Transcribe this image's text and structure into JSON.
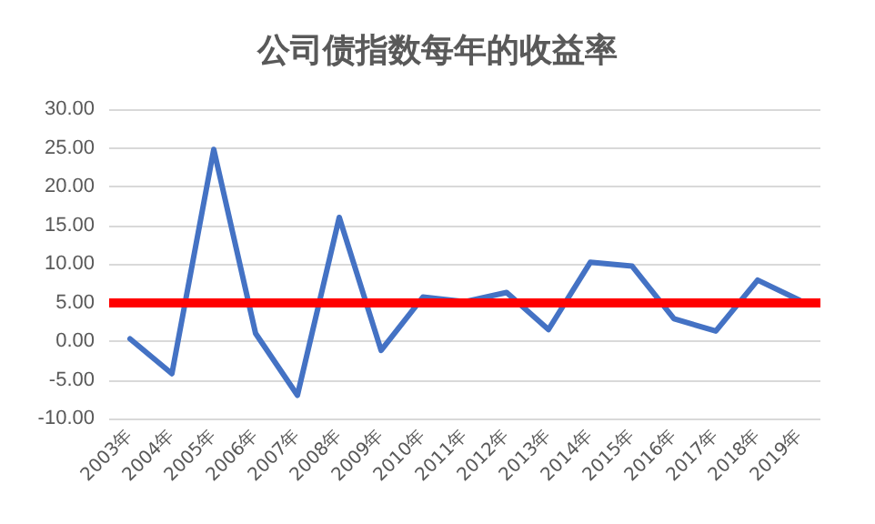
{
  "chart_data": {
    "type": "line",
    "title": "公司债指数每年的收益率",
    "categories": [
      "2003年",
      "2004年",
      "2005年",
      "2006年",
      "2007年",
      "2008年",
      "2009年",
      "2010年",
      "2011年",
      "2012年",
      "2013年",
      "2014年",
      "2015年",
      "2016年",
      "2017年",
      "2018年",
      "2019年"
    ],
    "series": [
      {
        "color": "#4472c4",
        "values": [
          0.3,
          -4.2,
          24.8,
          1.0,
          -7.0,
          16.0,
          -1.2,
          5.7,
          5.1,
          6.3,
          1.5,
          10.2,
          9.7,
          2.9,
          1.3,
          7.9,
          5.3
        ]
      }
    ],
    "ylim": [
      -10,
      30
    ],
    "yticks": [
      {
        "value": -10,
        "label": "-10.00"
      },
      {
        "value": -5,
        "label": "-5.00"
      },
      {
        "value": 0,
        "label": "0.00"
      },
      {
        "value": 5,
        "label": "5.00"
      },
      {
        "value": 10,
        "label": "10.00"
      },
      {
        "value": 15,
        "label": "15.00"
      },
      {
        "value": 20,
        "label": "20.00"
      },
      {
        "value": 25,
        "label": "25.00"
      },
      {
        "value": 30,
        "label": "30.00"
      }
    ],
    "ref_lines": [
      {
        "axis": "y",
        "value": 5,
        "color": "#ff0000",
        "line_style": "solid"
      }
    ],
    "grid": "y",
    "marker": "none",
    "line_style": "solid"
  }
}
